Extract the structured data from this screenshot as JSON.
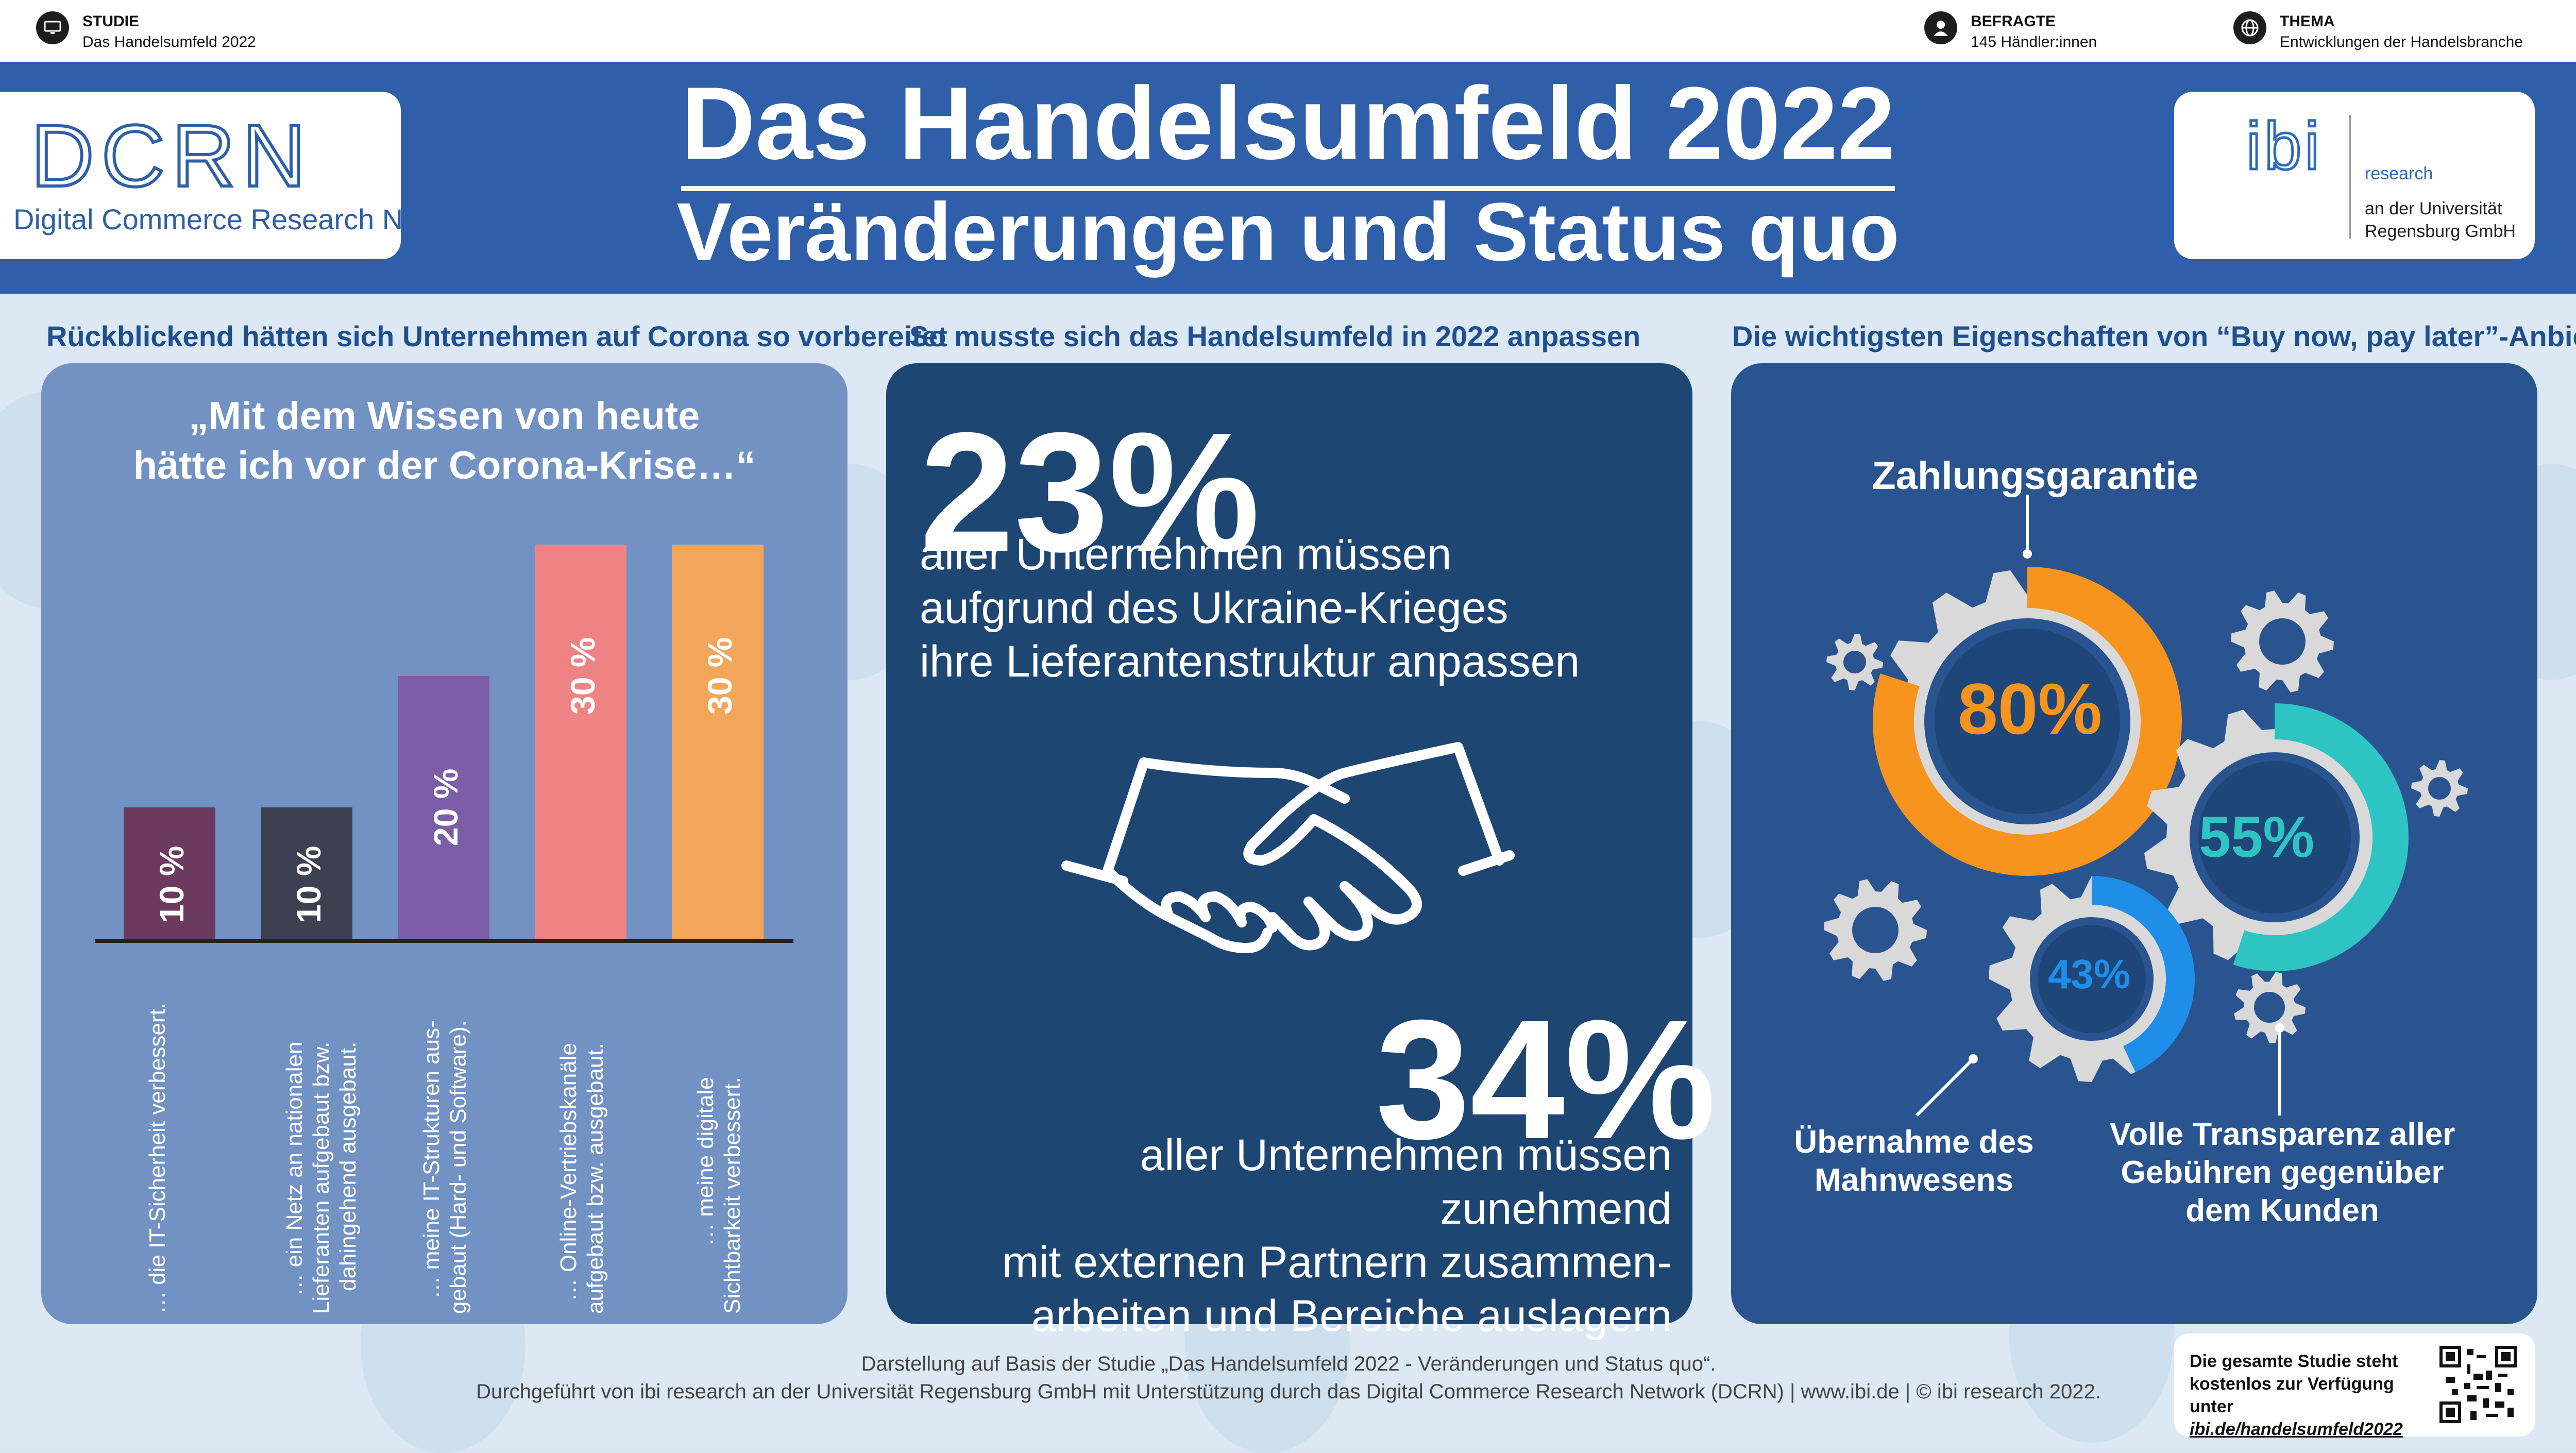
{
  "meta": {
    "studie_label": "STUDIE",
    "studie_value": "Das Handelsumfeld 2022",
    "befragte_label": "BEFRAGTE",
    "befragte_value": "145 Händler:innen",
    "thema_label": "THEMA",
    "thema_value": "Entwicklungen der Handelsbranche"
  },
  "logos": {
    "dcrn_short": "DCRN",
    "dcrn_full": "Digital Commerce Research Network",
    "ibi_mark": "ibi",
    "ibi_research": "research",
    "ibi_line2": "an der Universität",
    "ibi_line3": "Regensburg GmbH"
  },
  "header": {
    "title": "Das Handelsumfeld 2022",
    "subtitle": "Veränderungen und Status quo"
  },
  "section1": {
    "heading": "Rückblickend hätten sich Unternehmen auf Corona so vorbereitet",
    "quote_line1": "„Mit dem Wissen von heute",
    "quote_line2": "hätte ich vor der Corona-Krise…“"
  },
  "chart_data": {
    "type": "bar",
    "title": "„Mit dem Wissen von heute hätte ich vor der Corona-Krise…“",
    "categories": [
      "… die IT-Sicherheit verbessert.",
      "… ein Netz an nationalen Lieferanten aufgebaut bzw. dahingehend ausgebaut.",
      "… meine IT-Strukturen ausgebaut (Hard- und Software).",
      "… Online-Vertriebskanäle aufgebaut bzw. ausgebaut.",
      "… meine digitale Sichtbarkeit verbessert."
    ],
    "category_lines": [
      [
        "… die IT-Sicherheit verbessert."
      ],
      [
        "… ein Netz an nationalen",
        "Lieferanten aufgebaut bzw.",
        "dahingehend ausgebaut."
      ],
      [
        "… meine IT-Strukturen aus-",
        "gebaut (Hard- und Software)."
      ],
      [
        "… Online-Vertriebskanäle",
        "aufgebaut bzw. ausgebaut."
      ],
      [
        "… meine digitale",
        "Sichtbarkeit verbessert."
      ]
    ],
    "values": [
      10,
      10,
      20,
      30,
      30
    ],
    "value_labels": [
      "10 %",
      "10 %",
      "20 %",
      "30 %",
      "30 %"
    ],
    "colors": [
      "#6b3a5e",
      "#3b4150",
      "#7b5ea7",
      "#ef8383",
      "#f2a65a"
    ],
    "ylim": [
      0,
      30
    ]
  },
  "section2": {
    "heading": "So musste sich das Handelsumfeld in 2022 anpassen",
    "stat1_value": "23%",
    "stat1_line1": "aller Unternehmen müssen",
    "stat1_line2": "aufgrund des Ukraine-Krieges",
    "stat1_line3": "ihre Lieferantenstruktur anpassen",
    "stat2_value": "34%",
    "stat2_line1": "aller Unternehmen müssen zunehmend",
    "stat2_line2": "mit externen Partnern zusammen-",
    "stat2_line3": "arbeiten und Bereiche auslagern",
    "icon": "handshake-icon"
  },
  "section3": {
    "heading": "Die wichtigsten Eigenschaften von “Buy now, pay later”-Anbietern",
    "g1_label": "Zahlungsgarantie",
    "g1_value": "80%",
    "g2_value": "55%",
    "g2_label_line1": "Volle Transparenz aller",
    "g2_label_line2": "Gebühren gegenüber",
    "g2_label_line3": "dem Kunden",
    "g3_value": "43%",
    "g3_label_line1": "Übernahme des",
    "g3_label_line2": "Mahnwesens",
    "colors": {
      "orange": "#f7941d",
      "teal": "#2fc4c4",
      "blue": "#1f8ee8",
      "grey": "#d9d9d9"
    }
  },
  "footer": {
    "line1": "Darstellung auf Basis der Studie „Das Handelsumfeld 2022 - Veränderungen und Status quo“.",
    "line2": "Durchgeführt von ibi research an der Universität Regensburg GmbH mit Unterstützung durch das Digital Commerce Research Network (DCRN) | www.ibi.de | © ibi research 2022.",
    "qr_line1": "Die gesamte Studie steht",
    "qr_line2": "kostenlos zur Verfügung unter",
    "qr_link": "ibi.de/handelsumfeld2022"
  }
}
